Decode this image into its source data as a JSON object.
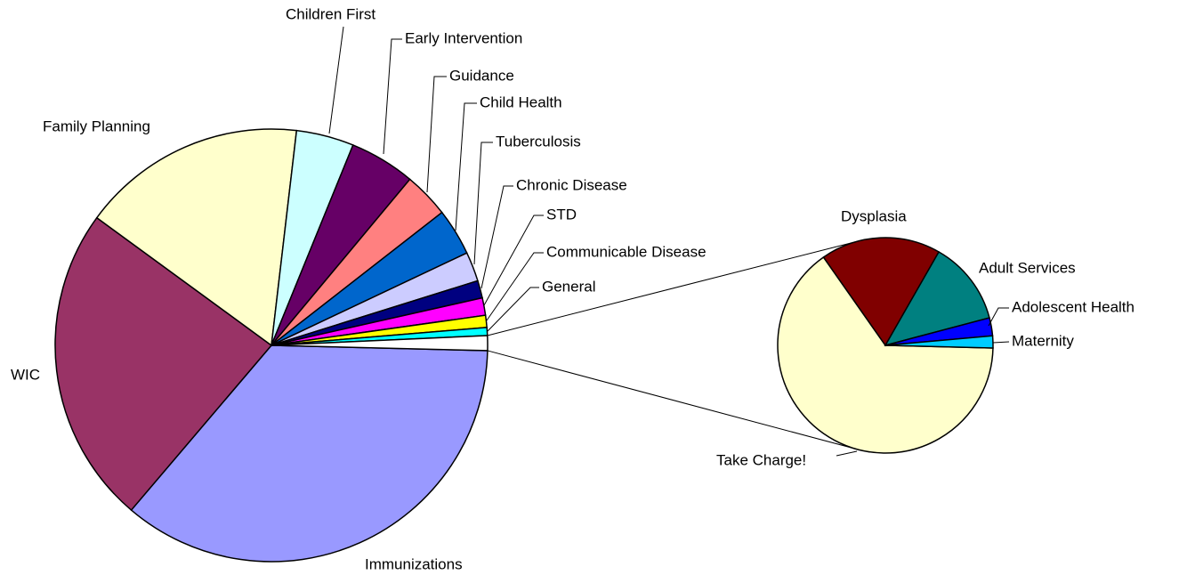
{
  "chart_data": {
    "type": "pie-of-pie",
    "categories": [
      "Immunizations",
      "WIC",
      "Family Planning",
      "Children First",
      "Early Intervention",
      "Guidance",
      "Child Health",
      "Tuberculosis",
      "Chronic Disease",
      "STD",
      "Communicable Disease",
      "General"
    ],
    "values": [
      35.8,
      23.8,
      16.8,
      4.3,
      4.9,
      3.4,
      3.5,
      2.2,
      1.3,
      1.3,
      0.9,
      0.6
    ],
    "colors": [
      "#9999ff",
      "#993366",
      "#ffffcc",
      "#ccffff",
      "#660066",
      "#ff8080",
      "#0066cc",
      "#ccccff",
      "#000080",
      "#ff00ff",
      "#ffff00",
      "#00ffff"
    ],
    "secondary": {
      "categories": [
        "Take Charge!",
        "Dysplasia",
        "Adult Services",
        "Adolescent Health",
        "Maternity"
      ],
      "values": [
        0.72,
        0.2,
        0.14,
        0.03,
        0.02
      ],
      "colors": [
        "#ffffcc",
        "#800000",
        "#008080",
        "#0000ff",
        "#00ccff"
      ]
    }
  }
}
